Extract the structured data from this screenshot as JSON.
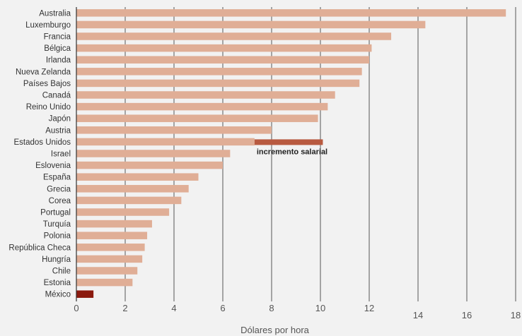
{
  "chart_data": {
    "type": "bar",
    "orientation": "horizontal",
    "categories": [
      "Australia",
      "Luxemburgo",
      "Francia",
      "Bélgica",
      "Irlanda",
      "Nueva Zelanda",
      "Países Bajos",
      "Canadá",
      "Reino Unido",
      "Japón",
      "Austria",
      "Estados Unidos",
      "Israel",
      "Eslovenia",
      "España",
      "Grecia",
      "Corea",
      "Portugal",
      "Turquía",
      "Polonia",
      "República Checa",
      "Hungría",
      "Chile",
      "Estonia",
      "México"
    ],
    "values": [
      17.6,
      14.3,
      12.9,
      12.1,
      12.0,
      11.7,
      11.6,
      10.6,
      10.3,
      9.9,
      8.0,
      7.3,
      6.3,
      6.0,
      5.0,
      4.6,
      4.3,
      3.8,
      3.1,
      2.9,
      2.8,
      2.7,
      2.5,
      2.3,
      0.7
    ],
    "highlight": {
      "category": "México",
      "color": "#8b1a0e"
    },
    "annotation": {
      "label": "incremento salarial",
      "category": "Estados Unidos",
      "from": 7.3,
      "to": 10.1,
      "color": "#b85a40"
    },
    "xlabel": "Dólares por hora",
    "xlim": [
      0,
      18
    ],
    "xticks": [
      0,
      2,
      4,
      6,
      8,
      10,
      12,
      14,
      16,
      18
    ],
    "grid": true,
    "colors": {
      "bar": "#e0ae96",
      "grid": "#555555",
      "axis": "#333333",
      "background": "#f2f2f2"
    }
  }
}
